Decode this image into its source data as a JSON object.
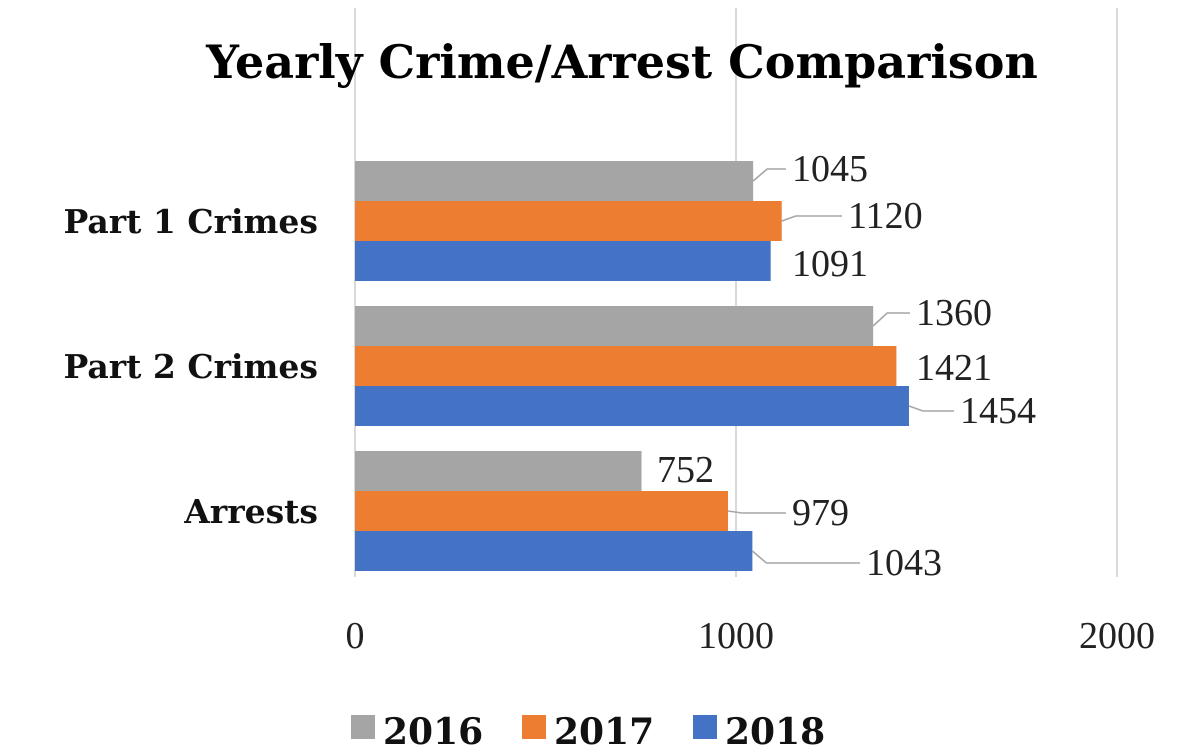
{
  "chart_data": {
    "type": "bar",
    "orientation": "horizontal",
    "title": "Yearly Crime/Arrest Comparison",
    "categories": [
      "Part 1 Crimes",
      "Part 2 Crimes",
      "Arrests"
    ],
    "series": [
      {
        "name": "2016",
        "color": "#a5a5a5",
        "values": [
          1045,
          1360,
          752
        ]
      },
      {
        "name": "2017",
        "color": "#ed7d31",
        "values": [
          1120,
          1421,
          979
        ]
      },
      {
        "name": "2018",
        "color": "#4472c4",
        "values": [
          1091,
          1454,
          1043
        ]
      }
    ],
    "xlim": [
      0,
      2000
    ],
    "xticks": [
      "0",
      "1000",
      "2000"
    ],
    "grid": true,
    "legend_position": "bottom",
    "data_labels": true
  }
}
